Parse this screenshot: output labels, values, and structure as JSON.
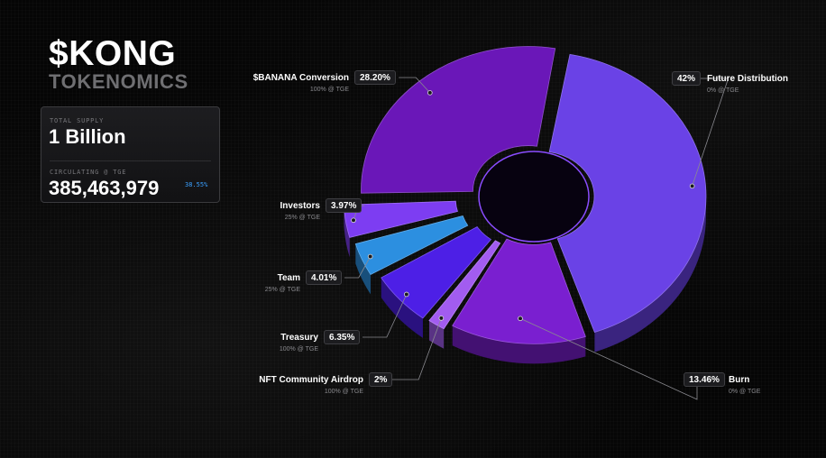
{
  "brand": {
    "title": "$KONG",
    "subtitle": "TOKENOMICS"
  },
  "supply": {
    "total_label": "TOTAL SUPPLY",
    "total_value": "1 Billion",
    "circulating_label": "CIRCULATING @ TGE",
    "circulating_value": "385,463,979",
    "circulating_percent": "38.55%"
  },
  "chart_data": {
    "type": "pie",
    "donut": true,
    "title": "",
    "slices": [
      {
        "name": "Future Distribution",
        "value": 42,
        "percent_label": "42%",
        "unlock": "0% @ TGE",
        "color": "#6a42e6"
      },
      {
        "name": "Burn",
        "value": 13.46,
        "percent_label": "13.46%",
        "unlock": "0% @ TGE",
        "color": "#7a1fd0"
      },
      {
        "name": "NFT Community Airdrop",
        "value": 2,
        "percent_label": "2%",
        "unlock": "100% @ TGE",
        "color": "#a25cf0"
      },
      {
        "name": "Treasury",
        "value": 6.35,
        "percent_label": "6.35%",
        "unlock": "100% @ TGE",
        "color": "#4d1fe6"
      },
      {
        "name": "Team",
        "value": 4.01,
        "percent_label": "4.01%",
        "unlock": "25% @ TGE",
        "color": "#2c8fe0"
      },
      {
        "name": "Investors",
        "value": 3.97,
        "percent_label": "3.97%",
        "unlock": "25% @ TGE",
        "color": "#7d3df2"
      },
      {
        "name": "$BANANA Conversion",
        "value": 28.2,
        "percent_label": "28.20%",
        "unlock": "100% @ TGE",
        "color": "#6a17b8"
      }
    ]
  }
}
